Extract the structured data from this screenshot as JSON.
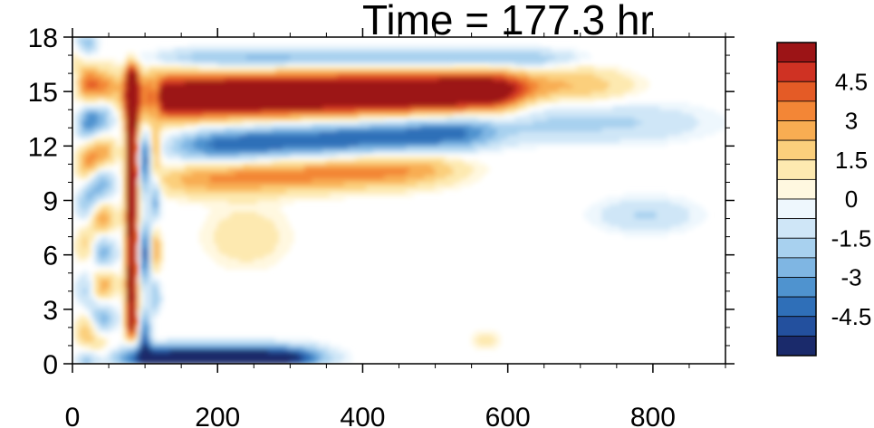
{
  "chart_data": {
    "type": "heatmap",
    "title": "Time = 177.3 hr",
    "xlabel": "",
    "ylabel": "",
    "xlim": [
      0,
      900
    ],
    "ylim": [
      0,
      18
    ],
    "x_ticks": [
      "0",
      "200",
      "400",
      "600",
      "800"
    ],
    "y_ticks": [
      "0",
      "3",
      "6",
      "9",
      "12",
      "15",
      "18"
    ],
    "colorbar": {
      "levels": [
        -6,
        -5.25,
        -4.5,
        -3.75,
        -3,
        -2.25,
        -1.5,
        -0.75,
        0,
        0.75,
        1.5,
        2.25,
        3,
        3.75,
        4.5,
        5.25,
        6
      ],
      "labels": [
        "4.5",
        "3",
        "1.5",
        "0",
        "-1.5",
        "-3",
        "-4.5"
      ],
      "colors": [
        "#1a2a6b",
        "#23509e",
        "#2f6fb8",
        "#4f93cf",
        "#7fb6e3",
        "#a8d1ef",
        "#cfe6f7",
        "#eef7fd",
        "#fff8e0",
        "#fde9b0",
        "#fbcf7c",
        "#f8ad52",
        "#f38636",
        "#e45b26",
        "#cf3223",
        "#9c1416"
      ]
    },
    "features": [
      {
        "name": "upper positive band",
        "x_range": [
          75,
          620
        ],
        "y_center": 14.8,
        "peak": 6
      },
      {
        "name": "negative band",
        "x_range": [
          150,
          560
        ],
        "y_center": 12.0,
        "peak": -4.5
      },
      {
        "name": "positive band",
        "x_range": [
          140,
          520
        ],
        "y_center": 10.3,
        "peak": 3.5
      },
      {
        "name": "top negative band",
        "x_range": [
          120,
          700
        ],
        "y_center": 16.8,
        "peak": -3
      },
      {
        "name": "surface negative layer",
        "x_range": [
          75,
          330
        ],
        "y_center": 0.4,
        "peak": -6
      },
      {
        "name": "vertical plume",
        "x_range": [
          70,
          125
        ],
        "y_center": 9.0,
        "peak": 6
      }
    ]
  }
}
